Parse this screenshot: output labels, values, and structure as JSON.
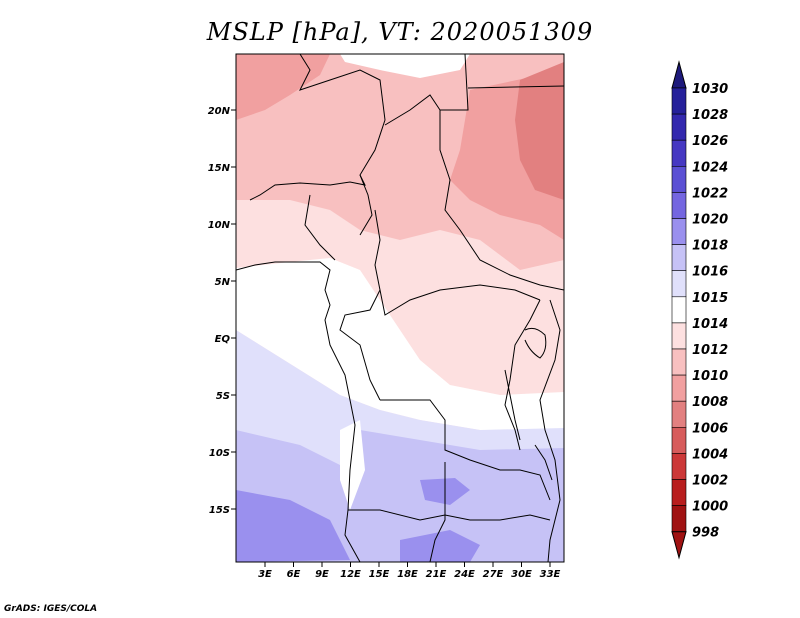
{
  "title": "MSLP [hPa], VT: 2020051309",
  "footer": "GrADS: IGES/COLA",
  "map": {
    "lat_labels": [
      "20N",
      "15N",
      "10N",
      "5N",
      "EQ",
      "5S",
      "10S",
      "15S"
    ],
    "lon_labels": [
      "3E",
      "6E",
      "9E",
      "12E",
      "15E",
      "18E",
      "21E",
      "24E",
      "27E",
      "30E",
      "33E"
    ]
  },
  "colorbar": {
    "levels": [
      "1030",
      "1028",
      "1026",
      "1024",
      "1022",
      "1020",
      "1018",
      "1016",
      "1015",
      "1014",
      "1012",
      "1010",
      "1008",
      "1006",
      "1004",
      "1002",
      "1000",
      "998"
    ],
    "colors": [
      "#1e1a7c",
      "#25209a",
      "#3328ae",
      "#4638c2",
      "#5b50d4",
      "#7466e0",
      "#9a90ee",
      "#c6c2f6",
      "#e0e0fb",
      "#ffffff",
      "#fde0e0",
      "#f8c0c0",
      "#f1a0a0",
      "#e28080",
      "#d75c5c",
      "#cc3838",
      "#b81e1e",
      "#a01212"
    ]
  }
}
